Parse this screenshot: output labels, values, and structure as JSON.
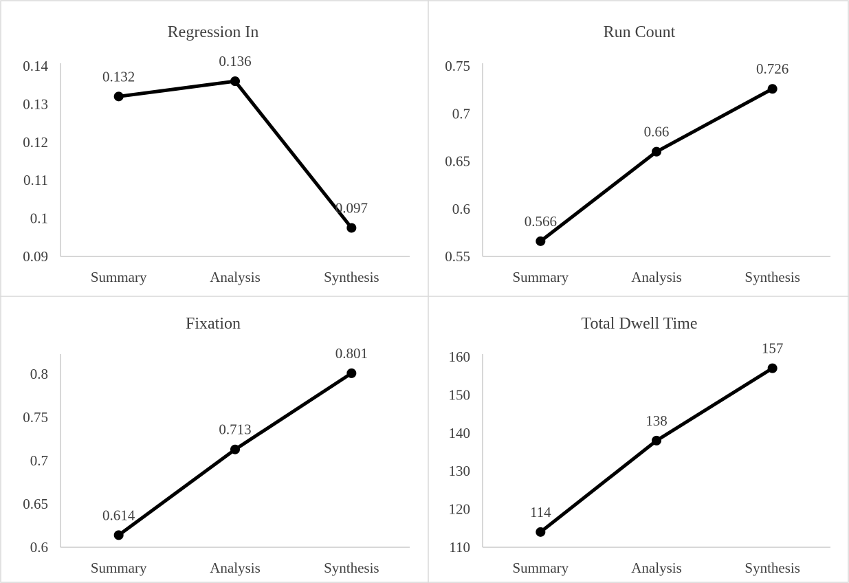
{
  "chart_data": [
    {
      "type": "line",
      "title": "Regression In",
      "categories": [
        "Summary",
        "Analysis",
        "Synthesis"
      ],
      "values": [
        0.132,
        0.136,
        0.0975
      ],
      "data_labels": [
        "0.132",
        "0.136",
        "0.097"
      ],
      "ylim": [
        0.09,
        0.14
      ],
      "yticks": [
        0.09,
        0.1,
        0.11,
        0.12,
        0.13,
        0.14
      ],
      "ytick_labels": [
        "0.09",
        "0.1",
        "0.11",
        "0.12",
        "0.13",
        "0.14"
      ],
      "grid": false,
      "color": "#000000"
    },
    {
      "type": "line",
      "title": "Run Count",
      "categories": [
        "Summary",
        "Analysis",
        "Synthesis"
      ],
      "values": [
        0.566,
        0.66,
        0.726
      ],
      "data_labels": [
        "0.566",
        "0.66",
        "0.726"
      ],
      "ylim": [
        0.55,
        0.75
      ],
      "yticks": [
        0.55,
        0.6,
        0.65,
        0.7,
        0.75
      ],
      "ytick_labels": [
        "0.55",
        "0.6",
        "0.65",
        "0.7",
        "0.75"
      ],
      "grid": false,
      "color": "#000000"
    },
    {
      "type": "line",
      "title": "Fixation",
      "categories": [
        "Summary",
        "Analysis",
        "Synthesis"
      ],
      "values": [
        0.614,
        0.713,
        0.801
      ],
      "data_labels": [
        "0.614",
        "0.713",
        "0.801"
      ],
      "ylim": [
        0.6,
        0.82
      ],
      "yticks": [
        0.6,
        0.65,
        0.7,
        0.75,
        0.8
      ],
      "ytick_labels": [
        "0.6",
        "0.65",
        "0.7",
        "0.75",
        "0.8"
      ],
      "grid": false,
      "color": "#000000"
    },
    {
      "type": "line",
      "title": "Total Dwell Time",
      "categories": [
        "Summary",
        "Analysis",
        "Synthesis"
      ],
      "values": [
        114,
        138,
        157
      ],
      "data_labels": [
        "114",
        "138",
        "157"
      ],
      "ylim": [
        110,
        160
      ],
      "yticks": [
        110,
        120,
        130,
        140,
        150,
        160
      ],
      "ytick_labels": [
        "110",
        "120",
        "130",
        "140",
        "150",
        "160"
      ],
      "grid": false,
      "color": "#000000"
    }
  ]
}
